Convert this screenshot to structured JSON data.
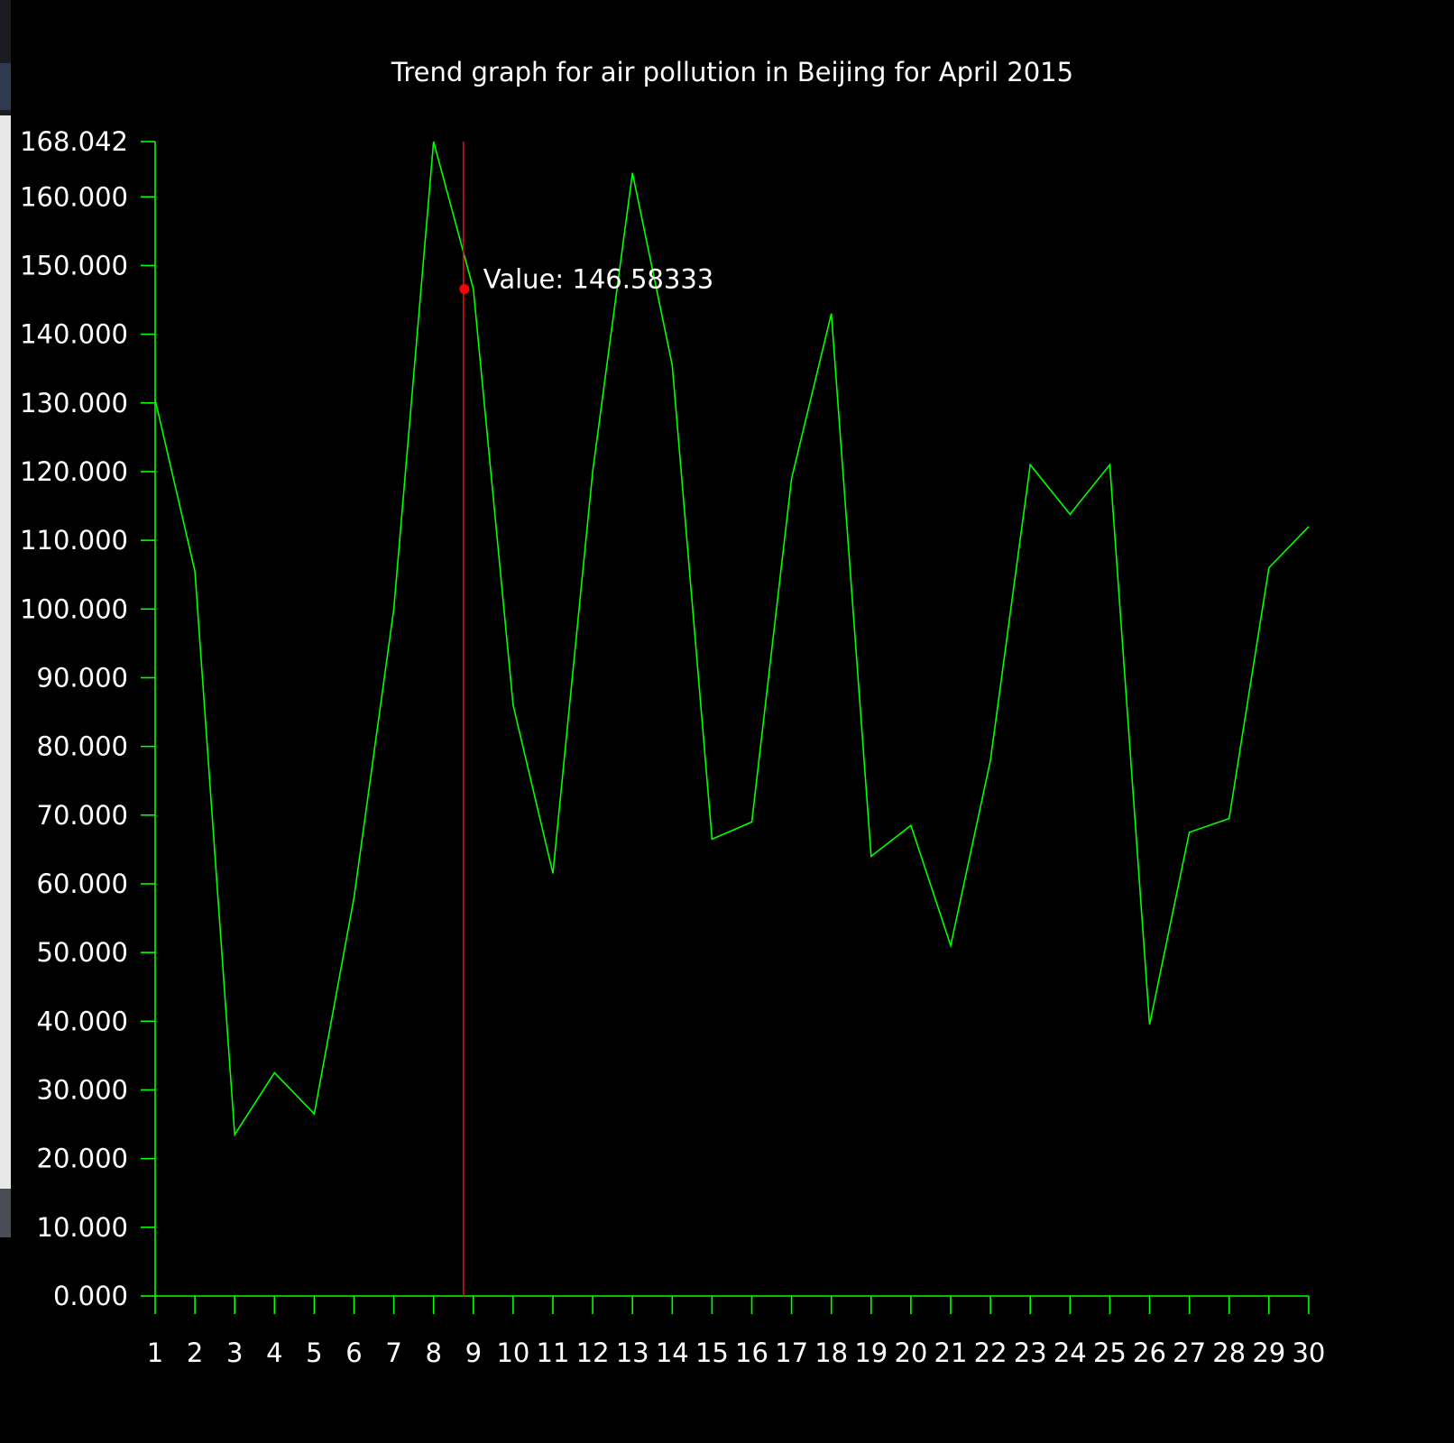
{
  "chart_data": {
    "type": "line",
    "title": "Trend graph for air pollution in Beijing for April 2015",
    "xlabel": "",
    "ylabel": "",
    "x": [
      1,
      2,
      3,
      4,
      5,
      6,
      7,
      8,
      9,
      10,
      11,
      12,
      13,
      14,
      15,
      16,
      17,
      18,
      19,
      20,
      21,
      22,
      23,
      24,
      25,
      26,
      27,
      28,
      29,
      30
    ],
    "series": [
      {
        "name": "",
        "color": "#00ff00",
        "values": [
          130.5,
          105.5,
          23.5,
          32.5,
          26.5,
          58.0,
          100.0,
          168.042,
          146.58333,
          86.0,
          61.5,
          120.0,
          163.5,
          135.5,
          66.5,
          69.0,
          119.0,
          143.0,
          64.0,
          68.5,
          51.0,
          78.0,
          121.0,
          113.8,
          121.0,
          39.5,
          67.5,
          69.5,
          106.0,
          112.0
        ]
      }
    ],
    "ylim": [
      0,
      168.042
    ],
    "yticks": [
      "0.000",
      "10.000",
      "20.000",
      "30.000",
      "40.000",
      "50.000",
      "60.000",
      "70.000",
      "80.000",
      "90.000",
      "100.000",
      "110.000",
      "120.000",
      "130.000",
      "140.000",
      "150.000",
      "160.000",
      "168.042"
    ],
    "grid": false,
    "legend": "none",
    "axis_color": "#00ff00",
    "background": "#000000",
    "cursor": {
      "x_position": 8.75,
      "marker_value": 146.58333,
      "label": "Value: 146.58333",
      "color": "#ff0000"
    }
  }
}
